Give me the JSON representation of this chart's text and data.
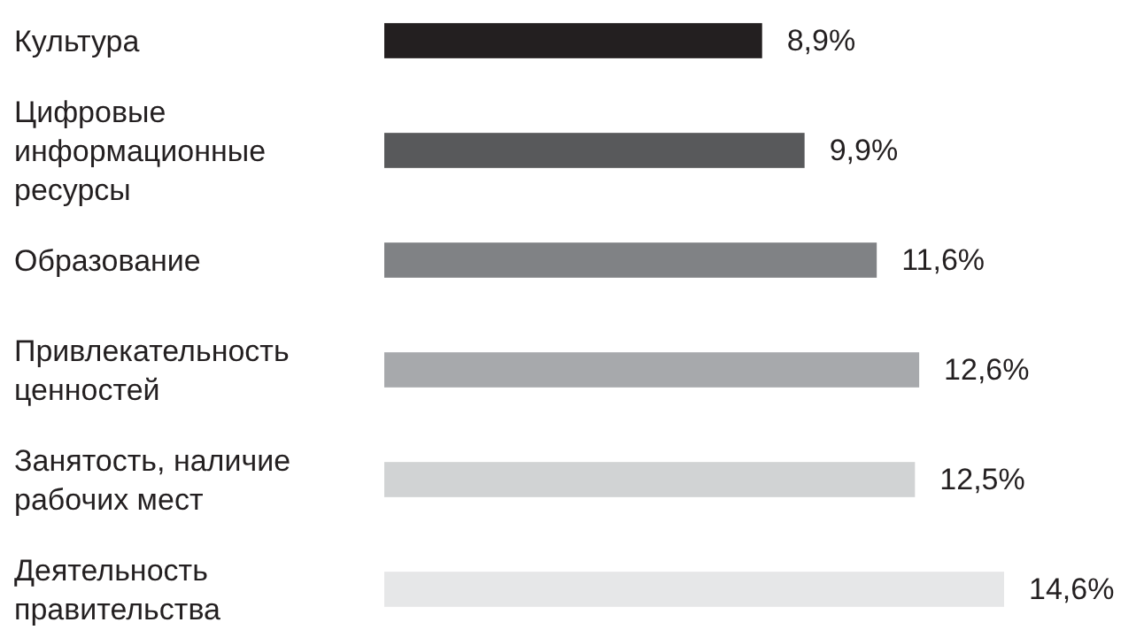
{
  "chart_data": {
    "type": "bar",
    "orientation": "horizontal",
    "categories": [
      "Культура",
      "Цифровые информационные ресурсы",
      "Образование",
      "Привлекательность ценностей",
      "Занятость, наличие рабочих мест",
      "Деятельность правительства"
    ],
    "values": [
      8.9,
      9.9,
      11.6,
      12.6,
      12.5,
      14.6
    ],
    "value_labels": [
      "8,9%",
      "9,9%",
      "11,6%",
      "12,6%",
      "12,5%",
      "14,6%"
    ],
    "colors": [
      "#231f20",
      "#58595b",
      "#808285",
      "#a7a9ac",
      "#d1d3d4",
      "#e6e7e8"
    ]
  }
}
